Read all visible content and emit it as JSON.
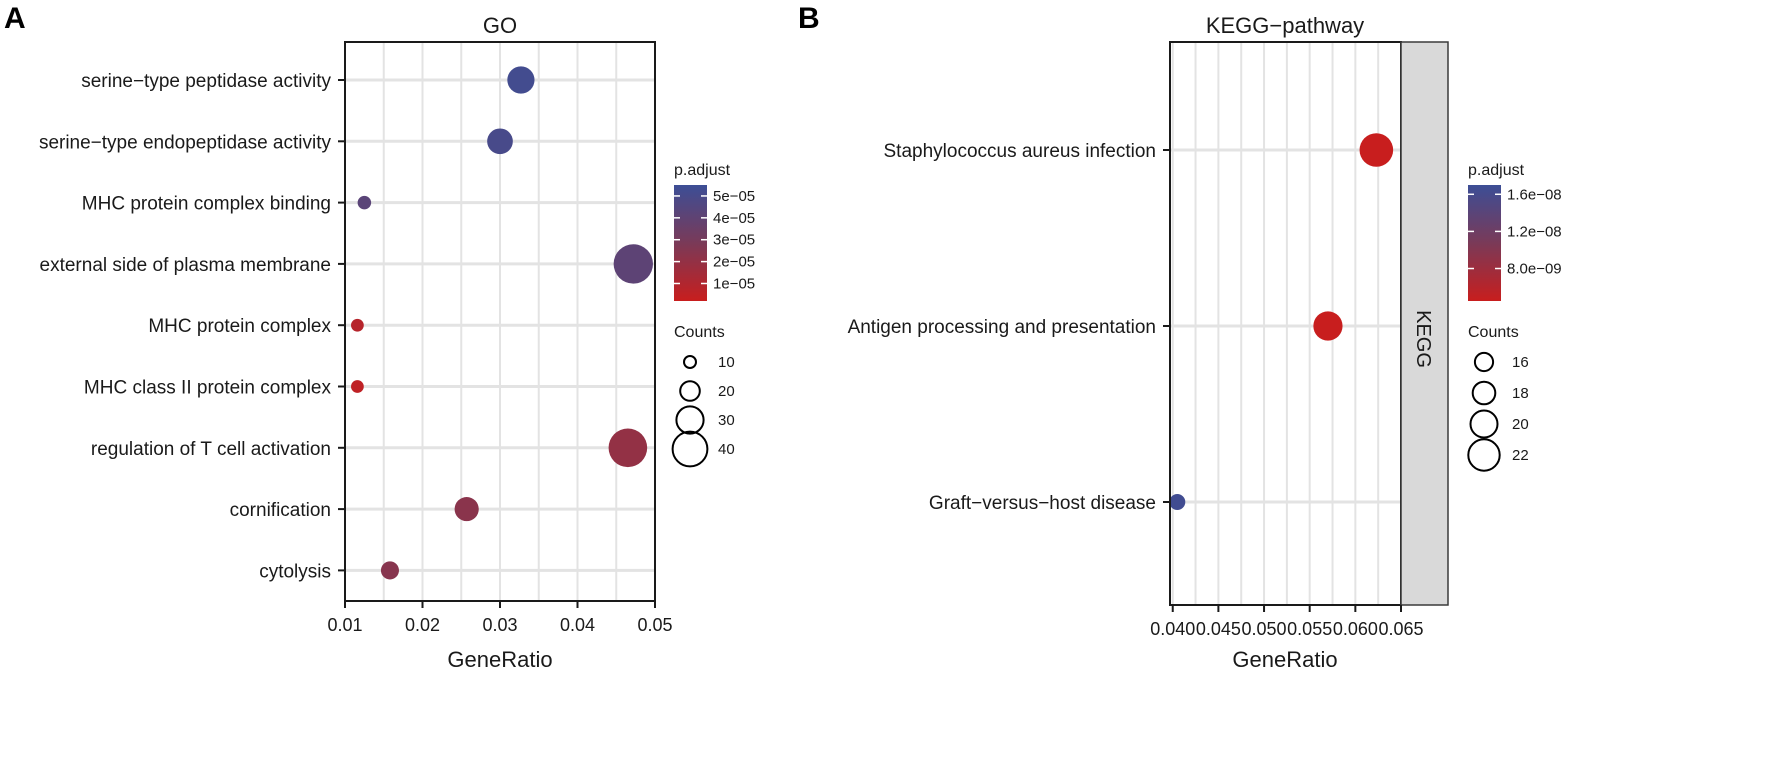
{
  "colors": {
    "low": "#c81e1e",
    "mid": "#7a3a58",
    "high": "#3c4e96",
    "grid": "#e3e3e3",
    "strip_fill": "#d9d9d9"
  },
  "chart_data": [
    {
      "panel": "A",
      "type": "scatter",
      "title": "GO",
      "xlabel": "GeneRatio",
      "ylabel": "",
      "xlim": [
        0.01,
        0.05
      ],
      "xticks": [
        "0.01",
        "0.02",
        "0.03",
        "0.04",
        "0.05"
      ],
      "xtick_values": [
        0.01,
        0.02,
        0.03,
        0.04,
        0.05
      ],
      "categories": [
        "serine−type peptidase activity",
        "serine−type endopeptidase activity",
        "MHC protein complex binding",
        "external side of plasma membrane",
        "MHC protein complex",
        "MHC class II protein complex",
        "regulation of T cell activation",
        "cornification",
        "cytolysis"
      ],
      "x": [
        0.0327,
        0.03,
        0.0125,
        0.0472,
        0.0116,
        0.0116,
        0.0465,
        0.0257,
        0.0158
      ],
      "counts": [
        30,
        28,
        12,
        46,
        11,
        11,
        45,
        26,
        18
      ],
      "p_adjust": [
        5.2e-05,
        5e-05,
        4.2e-05,
        4.1e-05,
        8e-06,
        5e-06,
        2e-05,
        2.3e-05,
        2.4e-05
      ],
      "color_legend": {
        "title": "p.adjust",
        "labels": [
          "5e−05",
          "4e−05",
          "3e−05",
          "2e−05",
          "1e−05"
        ],
        "values": [
          5e-05,
          4e-05,
          3e-05,
          2e-05,
          1e-05
        ],
        "range": [
          2e-06,
          5.5e-05
        ]
      },
      "size_legend": {
        "title": "Counts",
        "labels": [
          "10",
          "20",
          "30",
          "40"
        ],
        "values": [
          10,
          20,
          30,
          40
        ]
      }
    },
    {
      "panel": "B",
      "type": "scatter",
      "title": "KEGG−pathway",
      "xlabel": "GeneRatio",
      "ylabel": "",
      "facet_label": "KEGG",
      "xlim": [
        0.0397,
        0.065
      ],
      "xticks": [
        "0.040",
        "0.045",
        "0.050",
        "0.055",
        "0.060",
        "0.065"
      ],
      "xtick_values": [
        0.04,
        0.045,
        0.05,
        0.055,
        0.06,
        0.065
      ],
      "categories": [
        "Staphylococcus aureus infection",
        "Antigen processing and presentation",
        "Graft−versus−host disease"
      ],
      "x": [
        0.0623,
        0.057,
        0.0405
      ],
      "counts": [
        23,
        21,
        15
      ],
      "p_adjust": [
        3e-09,
        3.5e-09,
        1.65e-08
      ],
      "color_legend": {
        "title": "p.adjust",
        "labels": [
          "1.6e−08",
          "1.2e−08",
          "8.0e−09"
        ],
        "values": [
          1.6e-08,
          1.2e-08,
          8e-09
        ],
        "range": [
          4.5e-09,
          1.7e-08
        ]
      },
      "size_legend": {
        "title": "Counts",
        "labels": [
          "16",
          "18",
          "20",
          "22"
        ],
        "values": [
          16,
          18,
          20,
          22
        ]
      }
    }
  ]
}
